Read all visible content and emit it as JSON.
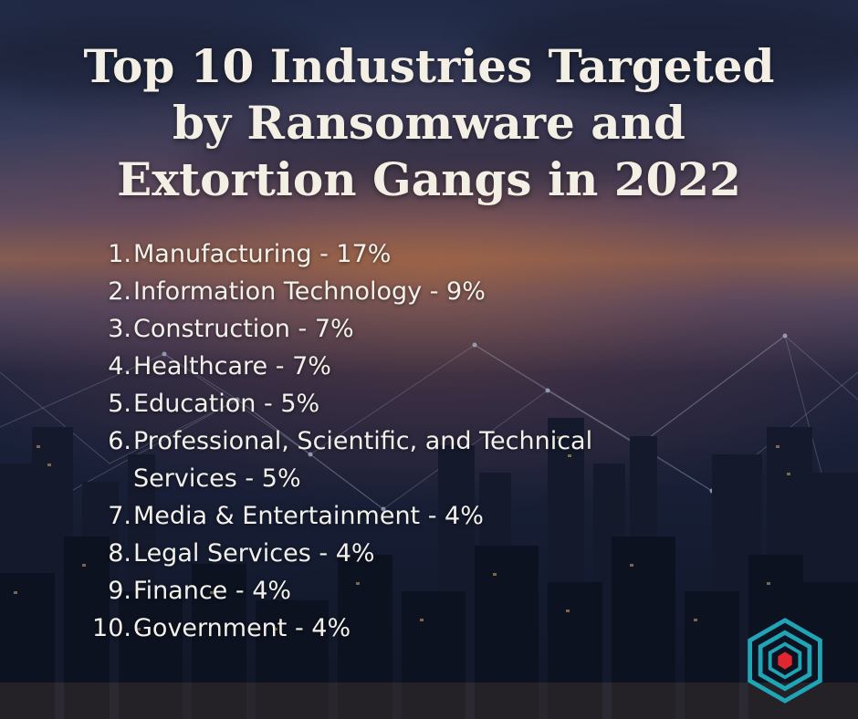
{
  "title_lines": [
    "Top 10 Industries Targeted",
    "by Ransomware and",
    "Extortion Gangs in 2022"
  ],
  "items": [
    {
      "num": "1.",
      "text": "Manufacturing - 17%"
    },
    {
      "num": "2.",
      "text": "Information Technology - 9%"
    },
    {
      "num": "3.",
      "text": "Construction - 7%"
    },
    {
      "num": "4.",
      "text": "Healthcare - 7%"
    },
    {
      "num": "5.",
      "text": "Education - 5%"
    },
    {
      "num": "6.",
      "text": "Professional, Scientific, and Technical Services - 5%"
    },
    {
      "num": "7.",
      "text": "Media & Entertainment - 4%"
    },
    {
      "num": "8.",
      "text": "Legal Services - 4%"
    },
    {
      "num": "9.",
      "text": "Finance - 4%"
    },
    {
      "num": "10.",
      "text": "Government - 4%"
    }
  ],
  "colors": {
    "title": "#f4efe4",
    "text": "#f3f1ec",
    "logo_teal": "#1fa5b5",
    "logo_red": "#e0262f"
  },
  "icons": {
    "logo": "hexagon-logo-icon"
  }
}
